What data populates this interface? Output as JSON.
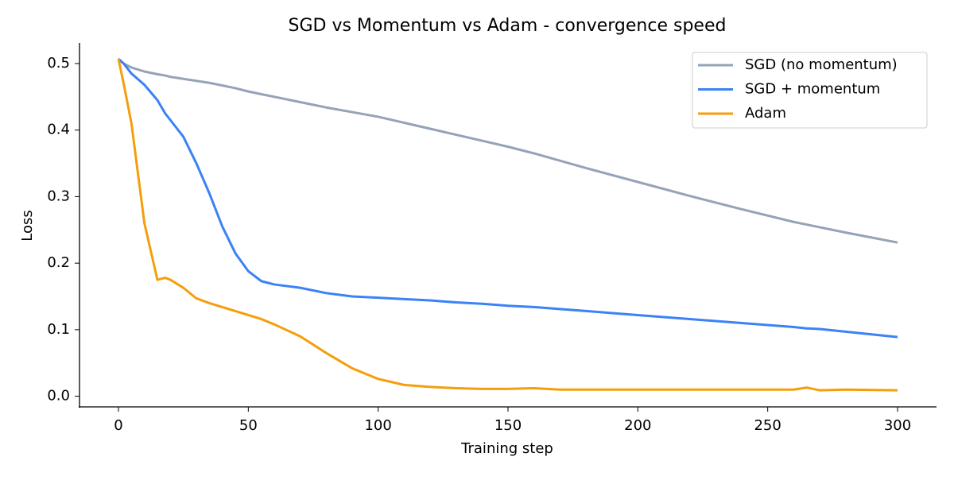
{
  "chart_data": {
    "type": "line",
    "title": "SGD vs Momentum vs Adam - convergence speed",
    "xlabel": "Training step",
    "ylabel": "Loss",
    "x": [
      0,
      2,
      5,
      10,
      15,
      18,
      20,
      25,
      30,
      35,
      40,
      45,
      50,
      55,
      60,
      70,
      80,
      90,
      100,
      110,
      120,
      130,
      140,
      150,
      160,
      170,
      180,
      200,
      220,
      240,
      260,
      265,
      270,
      280,
      300
    ],
    "series": [
      {
        "name": "SGD (no momentum)",
        "color": "#94a3b8",
        "values": [
          0.507,
          0.5,
          0.494,
          0.488,
          0.484,
          0.482,
          0.48,
          0.477,
          0.474,
          0.471,
          0.467,
          0.463,
          0.458,
          0.454,
          0.45,
          0.442,
          0.434,
          0.427,
          0.42,
          0.411,
          0.402,
          0.393,
          0.384,
          0.375,
          0.365,
          0.354,
          0.343,
          0.322,
          0.301,
          0.281,
          0.262,
          0.258,
          0.254,
          0.246,
          0.231
        ]
      },
      {
        "name": "SGD + momentum",
        "color": "#3b82f6",
        "values": [
          0.507,
          0.5,
          0.485,
          0.468,
          0.445,
          0.425,
          0.415,
          0.39,
          0.35,
          0.305,
          0.255,
          0.215,
          0.188,
          0.173,
          0.168,
          0.163,
          0.155,
          0.15,
          0.148,
          0.146,
          0.144,
          0.141,
          0.139,
          0.136,
          0.134,
          0.131,
          0.128,
          0.122,
          0.116,
          0.11,
          0.104,
          0.102,
          0.101,
          0.097,
          0.089
        ]
      },
      {
        "name": "Adam",
        "color": "#f59e0b",
        "values": [
          0.507,
          0.47,
          0.41,
          0.26,
          0.175,
          0.178,
          0.175,
          0.163,
          0.147,
          0.14,
          0.134,
          0.128,
          0.122,
          0.116,
          0.108,
          0.09,
          0.065,
          0.042,
          0.026,
          0.017,
          0.014,
          0.012,
          0.011,
          0.011,
          0.012,
          0.01,
          0.01,
          0.01,
          0.01,
          0.01,
          0.01,
          0.013,
          0.009,
          0.01,
          0.009
        ]
      }
    ],
    "xlim": [
      -15,
      315
    ],
    "ylim": [
      -0.016,
      0.531
    ],
    "xticks": [
      0,
      50,
      100,
      150,
      200,
      250,
      300
    ],
    "yticks": [
      {
        "value": 0,
        "label": "0.0"
      },
      0.1,
      0.2,
      0.3,
      0.4,
      0.5
    ],
    "legend": "upper right",
    "grid": false
  }
}
